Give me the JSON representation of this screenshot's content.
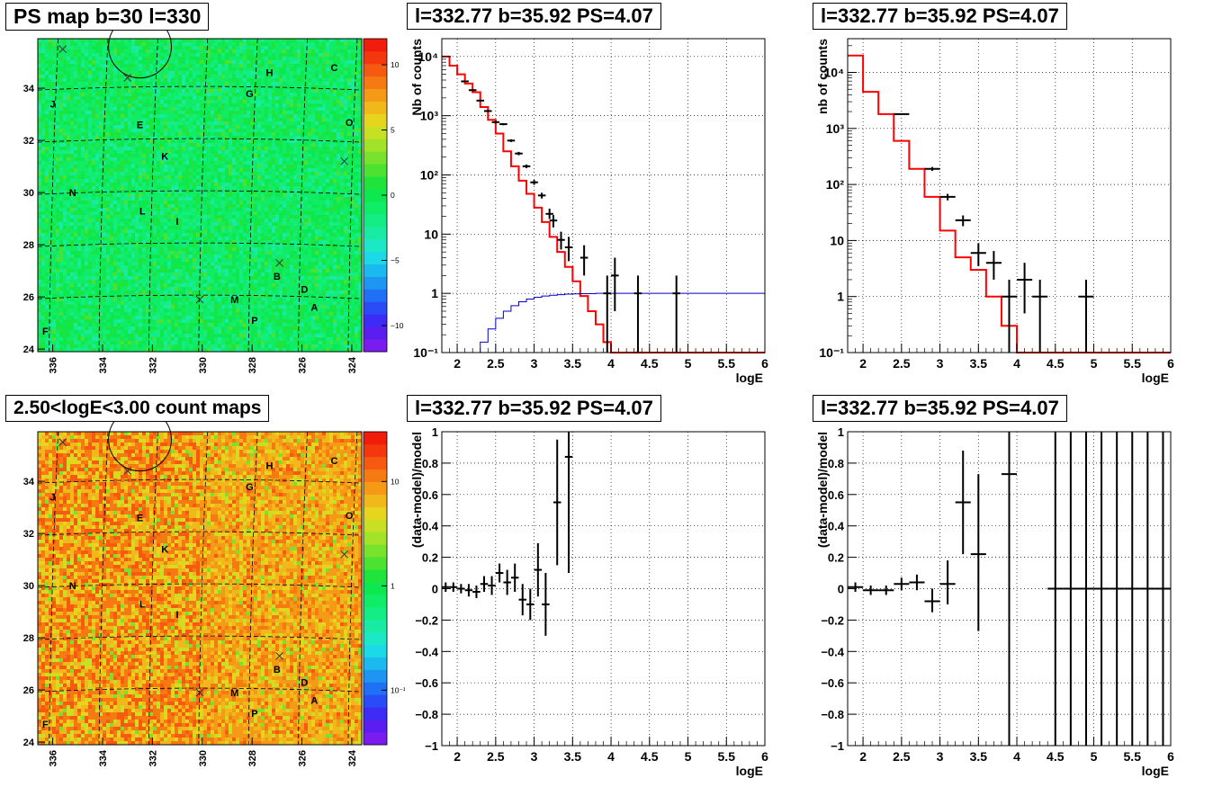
{
  "chart_data": [
    {
      "type": "heatmap",
      "title": "PS map b=30 l=330",
      "x_ticks": [
        "336",
        "334",
        "332",
        "330",
        "328",
        "326",
        "324"
      ],
      "x_tick_values": [
        336,
        334,
        332,
        330,
        328,
        326,
        324
      ],
      "xlim": [
        336.6,
        323.6
      ],
      "y_ticks": [
        "24",
        "26",
        "28",
        "30",
        "32",
        "34"
      ],
      "y_tick_values": [
        24,
        26,
        28,
        30,
        32,
        34
      ],
      "ylim": [
        23.9,
        35.9
      ],
      "colorbar_ticks": [
        "10",
        "5",
        "0",
        "−5",
        "−10"
      ],
      "colorbar_tick_values": [
        10,
        5,
        0,
        -5,
        -10
      ],
      "colorbar_range": [
        -12,
        12
      ],
      "colormap": [
        "#7a1bf0",
        "#5a1ff0",
        "#3c2cf5",
        "#2a4cf7",
        "#1f70f5",
        "#1f95f2",
        "#1ab9ee",
        "#1bd9e6",
        "#1de8c6",
        "#19eaa4",
        "#14ec84",
        "#10ec66",
        "#0ce84e",
        "#20e43c",
        "#4be232",
        "#78e22c",
        "#a2e228",
        "#c8e024",
        "#e6d41e",
        "#f0b81a",
        "#f49a16",
        "#f67a12",
        "#f65a10",
        "#f4380e",
        "#f21c0c"
      ],
      "background_color": "#14ec66",
      "sources": [
        {
          "label": "H",
          "l": 327.3,
          "b": 34.6
        },
        {
          "label": "C",
          "l": 324.7,
          "b": 34.8
        },
        {
          "label": "G",
          "l": 328.1,
          "b": 33.8
        },
        {
          "label": "J",
          "l": 336.0,
          "b": 33.4
        },
        {
          "label": "O",
          "l": 324.1,
          "b": 32.7
        },
        {
          "label": "E",
          "l": 332.5,
          "b": 32.6
        },
        {
          "label": "K",
          "l": 331.5,
          "b": 31.4
        },
        {
          "label": "N",
          "l": 335.2,
          "b": 30.0
        },
        {
          "label": "L",
          "l": 332.4,
          "b": 29.3
        },
        {
          "label": "I",
          "l": 331.0,
          "b": 28.9
        },
        {
          "label": "B",
          "l": 327.0,
          "b": 26.8
        },
        {
          "label": "D",
          "l": 325.9,
          "b": 26.3
        },
        {
          "label": "M",
          "l": 328.7,
          "b": 25.9
        },
        {
          "label": "A",
          "l": 325.5,
          "b": 25.6
        },
        {
          "label": "P",
          "l": 327.9,
          "b": 25.1
        },
        {
          "label": "F",
          "l": 336.3,
          "b": 24.7
        }
      ],
      "crosses": [
        {
          "l": 335.6,
          "b": 35.5
        },
        {
          "l": 333.0,
          "b": 34.4
        },
        {
          "l": 326.9,
          "b": 27.3
        },
        {
          "l": 330.1,
          "b": 25.9
        },
        {
          "l": 324.3,
          "b": 31.2
        }
      ],
      "circle": {
        "l": 332.5,
        "b": 35.6,
        "r": 0.7
      }
    },
    {
      "type": "line",
      "title": "l=332.77 b=35.92 PS=4.07",
      "xlabel": "logE",
      "ylabel": "Nb of counts",
      "xlim": [
        1.8,
        6
      ],
      "ylim": [
        0.1,
        20000
      ],
      "yscale": "log",
      "x_ticks": [
        "2",
        "2.5",
        "3",
        "3.5",
        "4",
        "4.5",
        "5",
        "5.5",
        "6"
      ],
      "x_tick_values": [
        2,
        2.5,
        3,
        3.5,
        4,
        4.5,
        5,
        5.5,
        6
      ],
      "y_ticks": [
        "10⁻¹",
        "1",
        "10",
        "10²",
        "10³",
        "10⁴"
      ],
      "y_tick_values": [
        0.1,
        1,
        10,
        100,
        1000,
        10000
      ],
      "grid": true,
      "series": [
        {
          "style": "red-step",
          "color": "#ff0000",
          "edges": [
            1.8,
            1.9,
            2.0,
            2.1,
            2.2,
            2.3,
            2.4,
            2.5,
            2.6,
            2.7,
            2.8,
            2.9,
            3.0,
            3.1,
            3.2,
            3.3,
            3.4,
            3.5,
            3.6,
            3.7,
            3.8,
            3.9,
            4.0,
            4.1,
            4.2,
            6.0
          ],
          "values": [
            10000,
            7000,
            5000,
            3500,
            2500,
            1400,
            850,
            500,
            250,
            140,
            80,
            48,
            28,
            16,
            9,
            5,
            2.8,
            1.6,
            0.9,
            0.5,
            0.3,
            0.15,
            0.1,
            0.1,
            0.1
          ]
        },
        {
          "style": "blue-step",
          "color": "#0000cc",
          "edges": [
            1.8,
            1.9,
            2.0,
            2.1,
            2.2,
            2.3,
            2.4,
            2.5,
            2.6,
            2.7,
            2.8,
            2.9,
            3.0,
            3.1,
            3.2,
            3.3,
            3.4,
            3.5,
            3.6,
            3.7,
            3.8,
            3.9,
            4.0,
            6.0
          ],
          "values": [
            0.06,
            0.07,
            0.08,
            0.09,
            0.1,
            0.15,
            0.25,
            0.38,
            0.5,
            0.62,
            0.72,
            0.8,
            0.86,
            0.9,
            0.93,
            0.95,
            0.97,
            0.98,
            0.99,
            0.99,
            1.0,
            1.0,
            1.0
          ]
        },
        {
          "style": "errors",
          "color": "#000000",
          "x": [
            2.1,
            2.2,
            2.3,
            2.4,
            2.5,
            2.6,
            2.7,
            2.8,
            2.9,
            3.0,
            3.1,
            3.2,
            3.25,
            3.35,
            3.45,
            3.65,
            3.95,
            4.05,
            4.35,
            4.85
          ],
          "y": [
            3800,
            2700,
            1800,
            1200,
            780,
            720,
            380,
            230,
            140,
            75,
            45,
            22,
            17,
            8,
            6,
            4,
            1,
            2,
            1,
            1
          ],
          "ylo": [
            3700,
            2600,
            1750,
            1150,
            740,
            690,
            360,
            215,
            130,
            68,
            40,
            18,
            13,
            5.5,
            3.5,
            2,
            0.1,
            0.5,
            0.1,
            0.1
          ],
          "yhi": [
            3900,
            2800,
            1850,
            1250,
            820,
            750,
            400,
            245,
            150,
            82,
            50,
            27,
            21,
            11,
            9,
            6.5,
            2,
            4,
            2,
            2
          ],
          "xerr": 0.05
        }
      ]
    },
    {
      "type": "line",
      "title": "l=332.77 b=35.92 PS=4.07",
      "xlabel": "logE",
      "ylabel": "nb of counts",
      "xlim": [
        1.8,
        6
      ],
      "ylim": [
        0.1,
        40000
      ],
      "yscale": "log",
      "x_ticks": [
        "2",
        "2.5",
        "3",
        "3.5",
        "4",
        "4.5",
        "5",
        "5.5",
        "6"
      ],
      "x_tick_values": [
        2,
        2.5,
        3,
        3.5,
        4,
        4.5,
        5,
        5.5,
        6
      ],
      "y_ticks": [
        "10⁻¹",
        "1",
        "10",
        "10²",
        "10³",
        "10⁴"
      ],
      "y_tick_values": [
        0.1,
        1,
        10,
        100,
        1000,
        10000
      ],
      "grid": true,
      "series": [
        {
          "style": "red-step",
          "color": "#ff0000",
          "edges": [
            1.8,
            2.0,
            2.2,
            2.4,
            2.6,
            2.8,
            3.0,
            3.2,
            3.4,
            3.6,
            3.8,
            4.0,
            4.2,
            6.0
          ],
          "values": [
            20000,
            4500,
            1800,
            600,
            190,
            60,
            15,
            5,
            3,
            1,
            0.3,
            0.1,
            0.1
          ]
        },
        {
          "style": "errors",
          "color": "#000000",
          "x": [
            2.5,
            2.9,
            3.1,
            3.3,
            3.5,
            3.7,
            3.9,
            4.1,
            4.3,
            4.9
          ],
          "y": [
            1800,
            190,
            60,
            23,
            6,
            4,
            1,
            2,
            1,
            1
          ],
          "ylo": [
            1750,
            175,
            52,
            18,
            3.5,
            2,
            0.1,
            0.5,
            0.1,
            0.1
          ],
          "yhi": [
            1850,
            205,
            68,
            28,
            9,
            6.5,
            2,
            4,
            2,
            2
          ],
          "xerr": 0.1
        }
      ]
    },
    {
      "type": "heatmap",
      "title": "2.50<logE<3.00 count maps",
      "x_ticks": [
        "336",
        "334",
        "332",
        "330",
        "328",
        "326",
        "324"
      ],
      "x_tick_values": [
        336,
        334,
        332,
        330,
        328,
        326,
        324
      ],
      "xlim": [
        336.6,
        323.6
      ],
      "y_ticks": [
        "24",
        "26",
        "28",
        "30",
        "32",
        "34"
      ],
      "y_tick_values": [
        24,
        26,
        28,
        30,
        32,
        34
      ],
      "ylim": [
        23.9,
        35.9
      ],
      "colorbar_ticks": [
        "10",
        "1",
        "10⁻¹"
      ],
      "colorbar_tick_values": [
        10,
        1,
        0.1
      ],
      "colorbar_range": [
        0.03,
        30
      ],
      "colorbar_scale": "log",
      "colormap": [
        "#7a1bf0",
        "#5a1ff0",
        "#3c2cf5",
        "#2a4cf7",
        "#1f70f5",
        "#1f95f2",
        "#1ab9ee",
        "#1bd9e6",
        "#1de8c6",
        "#19eaa4",
        "#14ec84",
        "#10ec66",
        "#0ce84e",
        "#20e43c",
        "#4be232",
        "#78e22c",
        "#a2e228",
        "#c8e024",
        "#e6d41e",
        "#f0b81a",
        "#f49a16",
        "#f67a12",
        "#f65a10",
        "#f4380e",
        "#f21c0c"
      ],
      "background_color": "#f4a02a",
      "sources": [
        {
          "label": "H",
          "l": 327.3,
          "b": 34.6
        },
        {
          "label": "C",
          "l": 324.7,
          "b": 34.8
        },
        {
          "label": "G",
          "l": 328.1,
          "b": 33.8
        },
        {
          "label": "J",
          "l": 336.0,
          "b": 33.4
        },
        {
          "label": "O",
          "l": 324.1,
          "b": 32.7
        },
        {
          "label": "E",
          "l": 332.5,
          "b": 32.6
        },
        {
          "label": "K",
          "l": 331.5,
          "b": 31.4
        },
        {
          "label": "N",
          "l": 335.2,
          "b": 30.0
        },
        {
          "label": "L",
          "l": 332.4,
          "b": 29.3
        },
        {
          "label": "I",
          "l": 331.0,
          "b": 28.9
        },
        {
          "label": "B",
          "l": 327.0,
          "b": 26.8
        },
        {
          "label": "D",
          "l": 325.9,
          "b": 26.3
        },
        {
          "label": "M",
          "l": 328.7,
          "b": 25.9
        },
        {
          "label": "A",
          "l": 325.5,
          "b": 25.6
        },
        {
          "label": "P",
          "l": 327.9,
          "b": 25.1
        },
        {
          "label": "F",
          "l": 336.3,
          "b": 24.7
        }
      ],
      "crosses": [
        {
          "l": 335.6,
          "b": 35.5
        },
        {
          "l": 333.0,
          "b": 34.4
        },
        {
          "l": 326.9,
          "b": 27.3
        },
        {
          "l": 330.1,
          "b": 25.9
        },
        {
          "l": 324.3,
          "b": 31.2
        }
      ],
      "circle": {
        "l": 332.5,
        "b": 35.6,
        "r": 0.7
      }
    },
    {
      "type": "scatter",
      "title": "l=332.77 b=35.92 PS=4.07",
      "xlabel": "logE",
      "ylabel": "(data-model)/model",
      "xlim": [
        1.8,
        6
      ],
      "ylim": [
        -1,
        1
      ],
      "x_ticks": [
        "2",
        "2.5",
        "3",
        "3.5",
        "4",
        "4.5",
        "5",
        "5.5",
        "6"
      ],
      "x_tick_values": [
        2,
        2.5,
        3,
        3.5,
        4,
        4.5,
        5,
        5.5,
        6
      ],
      "y_ticks": [
        "1",
        "0.8",
        "0.6",
        "0.4",
        "0.2",
        "0",
        "−0.2",
        "−0.4",
        "−0.6",
        "−0.8",
        "−1"
      ],
      "y_tick_values": [
        1,
        0.8,
        0.6,
        0.4,
        0.2,
        0,
        -0.2,
        -0.4,
        -0.6,
        -0.8,
        -1
      ],
      "grid": true,
      "series": [
        {
          "style": "errors",
          "color": "#000000",
          "x": [
            1.85,
            1.95,
            2.05,
            2.15,
            2.25,
            2.35,
            2.45,
            2.55,
            2.65,
            2.75,
            2.85,
            2.95,
            3.05,
            3.15,
            3.3,
            3.45
          ],
          "y": [
            0.01,
            0.01,
            0.0,
            -0.01,
            -0.02,
            0.03,
            0.02,
            0.1,
            0.04,
            0.07,
            -0.07,
            -0.1,
            0.12,
            -0.1,
            0.55,
            0.84
          ],
          "ylo": [
            -0.02,
            -0.02,
            -0.03,
            -0.05,
            -0.06,
            -0.02,
            -0.04,
            0.04,
            -0.04,
            -0.02,
            -0.17,
            -0.2,
            -0.05,
            -0.3,
            0.15,
            0.1
          ],
          "yhi": [
            0.04,
            0.04,
            0.03,
            0.03,
            0.02,
            0.08,
            0.08,
            0.16,
            0.12,
            0.16,
            0.03,
            0.0,
            0.29,
            0.1,
            0.95,
            1.0
          ],
          "xerr": 0.05
        }
      ]
    },
    {
      "type": "scatter",
      "title": "l=332.77 b=35.92 PS=4.07",
      "xlabel": "logE",
      "ylabel": "(data-model)/model",
      "xlim": [
        1.8,
        6
      ],
      "ylim": [
        -1,
        1
      ],
      "x_ticks": [
        "2",
        "2.5",
        "3",
        "3.5",
        "4",
        "4.5",
        "5",
        "5.5",
        "6"
      ],
      "x_tick_values": [
        2,
        2.5,
        3,
        3.5,
        4,
        4.5,
        5,
        5.5,
        6
      ],
      "y_ticks": [
        "1",
        "0.8",
        "0.6",
        "0.4",
        "0.2",
        "0",
        "−0.2",
        "−0.4",
        "−0.6",
        "−0.8",
        "−1"
      ],
      "y_tick_values": [
        1,
        0.8,
        0.6,
        0.4,
        0.2,
        0,
        -0.2,
        -0.4,
        -0.6,
        -0.8,
        -1
      ],
      "grid": true,
      "series": [
        {
          "style": "errors",
          "color": "#000000",
          "x": [
            1.9,
            2.1,
            2.3,
            2.5,
            2.7,
            2.9,
            3.1,
            3.3,
            3.5,
            3.9,
            4.5,
            4.7,
            4.9,
            5.1,
            5.3,
            5.5,
            5.7,
            5.9
          ],
          "y": [
            0.01,
            -0.01,
            -0.01,
            0.03,
            0.04,
            -0.08,
            0.03,
            0.55,
            0.22,
            0.73,
            0.0,
            0.0,
            0.0,
            0.0,
            0.0,
            0.0,
            0.0,
            0.0
          ],
          "ylo": [
            -0.02,
            -0.04,
            -0.04,
            -0.01,
            -0.01,
            -0.15,
            -0.1,
            0.22,
            -0.27,
            -1.0,
            -1.0,
            -1.0,
            -1.0,
            -1.0,
            -1.0,
            -1.0,
            -1.0,
            -1.0
          ],
          "yhi": [
            0.04,
            0.02,
            0.02,
            0.07,
            0.09,
            0.0,
            0.18,
            0.88,
            0.73,
            1.0,
            1.0,
            1.0,
            1.0,
            1.0,
            1.0,
            1.0,
            1.0,
            1.0
          ],
          "xerr": 0.1
        }
      ]
    }
  ]
}
